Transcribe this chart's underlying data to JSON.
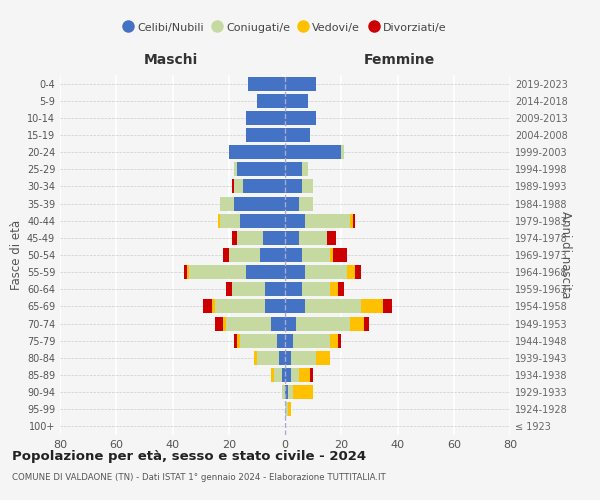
{
  "age_groups": [
    "100+",
    "95-99",
    "90-94",
    "85-89",
    "80-84",
    "75-79",
    "70-74",
    "65-69",
    "60-64",
    "55-59",
    "50-54",
    "45-49",
    "40-44",
    "35-39",
    "30-34",
    "25-29",
    "20-24",
    "15-19",
    "10-14",
    "5-9",
    "0-4"
  ],
  "birth_years": [
    "≤ 1923",
    "1924-1928",
    "1929-1933",
    "1934-1938",
    "1939-1943",
    "1944-1948",
    "1949-1953",
    "1954-1958",
    "1959-1963",
    "1964-1968",
    "1969-1973",
    "1974-1978",
    "1979-1983",
    "1984-1988",
    "1989-1993",
    "1994-1998",
    "1999-2003",
    "2004-2008",
    "2009-2013",
    "2014-2018",
    "2019-2023"
  ],
  "maschi": {
    "celibi": [
      0,
      0,
      0,
      1,
      2,
      3,
      5,
      7,
      7,
      14,
      9,
      8,
      16,
      18,
      15,
      17,
      20,
      14,
      14,
      10,
      13
    ],
    "coniugati": [
      0,
      0,
      1,
      3,
      8,
      13,
      16,
      18,
      12,
      20,
      11,
      9,
      7,
      5,
      3,
      1,
      0,
      0,
      0,
      0,
      0
    ],
    "vedovi": [
      0,
      0,
      0,
      1,
      1,
      1,
      1,
      1,
      0,
      1,
      0,
      0,
      1,
      0,
      0,
      0,
      0,
      0,
      0,
      0,
      0
    ],
    "divorziati": [
      0,
      0,
      0,
      0,
      0,
      1,
      3,
      3,
      2,
      1,
      2,
      2,
      0,
      0,
      1,
      0,
      0,
      0,
      0,
      0,
      0
    ]
  },
  "femmine": {
    "nubili": [
      0,
      0,
      1,
      2,
      2,
      3,
      4,
      7,
      6,
      7,
      6,
      5,
      7,
      5,
      6,
      6,
      20,
      9,
      11,
      8,
      11
    ],
    "coniugate": [
      0,
      1,
      2,
      3,
      9,
      13,
      19,
      20,
      10,
      15,
      10,
      10,
      16,
      5,
      4,
      2,
      1,
      0,
      0,
      0,
      0
    ],
    "vedove": [
      0,
      1,
      7,
      4,
      5,
      3,
      5,
      8,
      3,
      3,
      1,
      0,
      1,
      0,
      0,
      0,
      0,
      0,
      0,
      0,
      0
    ],
    "divorziate": [
      0,
      0,
      0,
      1,
      0,
      1,
      2,
      3,
      2,
      2,
      5,
      3,
      1,
      0,
      0,
      0,
      0,
      0,
      0,
      0,
      0
    ]
  },
  "colors": {
    "celibi": "#4472c4",
    "coniugati": "#c5d9a0",
    "vedovi": "#ffc000",
    "divorziati": "#cc0000"
  },
  "xlim": 80,
  "title": "Popolazione per età, sesso e stato civile - 2024",
  "subtitle": "COMUNE DI VALDAONE (TN) - Dati ISTAT 1° gennaio 2024 - Elaborazione TUTTITALIA.IT",
  "ylabel_left": "Fasce di età",
  "ylabel_right": "Anni di nascita",
  "xlabel_left": "Maschi",
  "xlabel_right": "Femmine",
  "bg_color": "#f5f5f5",
  "legend_labels": [
    "Celibi/Nubili",
    "Coniugati/e",
    "Vedovi/e",
    "Divorziati/e"
  ]
}
